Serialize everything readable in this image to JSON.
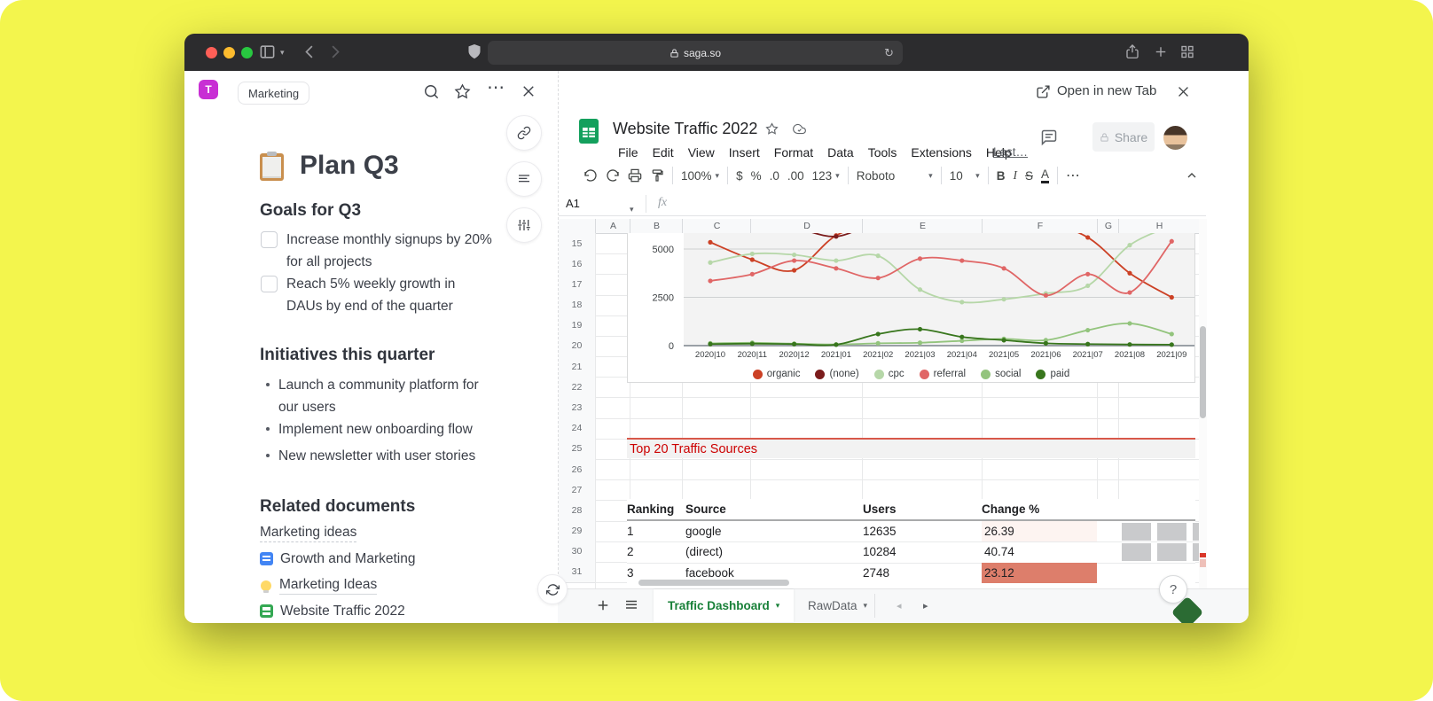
{
  "browser": {
    "host": "saga.so"
  },
  "embed_bar": {
    "open_label": "Open in new Tab"
  },
  "saga": {
    "avatar_letter": "T",
    "breadcrumb": "Marketing",
    "title": "Plan Q3",
    "goals_heading": "Goals for Q3",
    "goals": [
      "Increase monthly signups by 20% for all projects",
      "Reach 5% weekly growth in DAUs by end of the quarter"
    ],
    "initiatives_heading": "Initiatives this quarter",
    "initiatives": [
      "Launch a community platform for our users",
      "Implement new onboarding flow",
      "New newsletter with user stories"
    ],
    "related_heading": "Related documents",
    "related": [
      {
        "label": "Marketing ideas",
        "icon": "none",
        "underline": "dashed"
      },
      {
        "label": "Growth and Marketing",
        "icon": "doc-blue",
        "underline": "none"
      },
      {
        "label": "Marketing Ideas",
        "icon": "bulb",
        "underline": "solid"
      },
      {
        "label": "Website Traffic 2022",
        "icon": "sheet-green",
        "underline": "none"
      }
    ]
  },
  "sheets": {
    "doc_title": "Website Traffic 2022",
    "menus": [
      "File",
      "Edit",
      "View",
      "Insert",
      "Format",
      "Data",
      "Tools",
      "Extensions",
      "Help"
    ],
    "last_edit": "Last…",
    "share_label": "Share",
    "toolbar": {
      "zoom": "100%",
      "currency": "$",
      "percent": "%",
      "dec_dec": ".0",
      "inc_dec": ".00",
      "more_formats": "123",
      "font": "Roboto",
      "font_size": "10",
      "bold": "B",
      "italic": "I",
      "strike": "S",
      "text_color": "A",
      "more": "⋯"
    },
    "name_box": "A1",
    "fx": "fx",
    "columns": [
      "A",
      "B",
      "C",
      "D",
      "E",
      "F",
      "G",
      "H"
    ],
    "row_start": 15,
    "row_end": 31,
    "section_banner": "Top 20 Traffic Sources",
    "table": {
      "headers": [
        "Ranking",
        "Source",
        "Users",
        "Change %"
      ],
      "rows": [
        {
          "ranking": "1",
          "source": "google",
          "users": "12635",
          "change": "26.39",
          "change_bg": "#fdf4f1"
        },
        {
          "ranking": "2",
          "source": "(direct)",
          "users": "10284",
          "change": "40.74",
          "change_bg": ""
        },
        {
          "ranking": "3",
          "source": "facebook",
          "users": "2748",
          "change": "23.12",
          "change_bg": "#dd7e6b"
        }
      ]
    },
    "tabs": [
      {
        "label": "Traffic Dashboard",
        "active": true
      },
      {
        "label": "RawData",
        "active": false
      }
    ],
    "help": "?"
  },
  "chart_data": {
    "type": "line",
    "x": [
      "2020|10",
      "2020|11",
      "2020|12",
      "2021|01",
      "2021|02",
      "2021|03",
      "2021|04",
      "2021|05",
      "2021|06",
      "2021|07",
      "2021|08",
      "2021|09"
    ],
    "series": [
      {
        "name": "organic",
        "color": "#cc4125",
        "values": [
          5350,
          4450,
          3900,
          5700,
          6300,
          6400,
          6200,
          6100,
          6300,
          5600,
          3750,
          2500
        ]
      },
      {
        "name": "(none)",
        "color": "#7b1c1c",
        "values": [
          6400,
          6300,
          6100,
          5650,
          6400,
          6500,
          6450,
          6350,
          6450,
          6500,
          6400,
          6350
        ]
      },
      {
        "name": "cpc",
        "color": "#b6d7a8",
        "values": [
          4300,
          4750,
          4700,
          4400,
          4650,
          2900,
          2250,
          2400,
          2700,
          3100,
          5200,
          6200
        ]
      },
      {
        "name": "referral",
        "color": "#e06666",
        "values": [
          3350,
          3700,
          4400,
          4000,
          3500,
          4500,
          4400,
          4000,
          2600,
          3700,
          2750,
          5400
        ]
      },
      {
        "name": "social",
        "color": "#93c47d",
        "values": [
          120,
          150,
          100,
          60,
          120,
          150,
          250,
          350,
          280,
          800,
          1150,
          600
        ]
      },
      {
        "name": "paid",
        "color": "#38761d",
        "values": [
          80,
          100,
          80,
          50,
          600,
          850,
          450,
          280,
          120,
          80,
          60,
          50
        ]
      }
    ],
    "yticks": [
      0,
      2500,
      5000
    ],
    "ylim_visible": [
      0,
      5900
    ],
    "grid": true,
    "legend_position": "bottom"
  }
}
